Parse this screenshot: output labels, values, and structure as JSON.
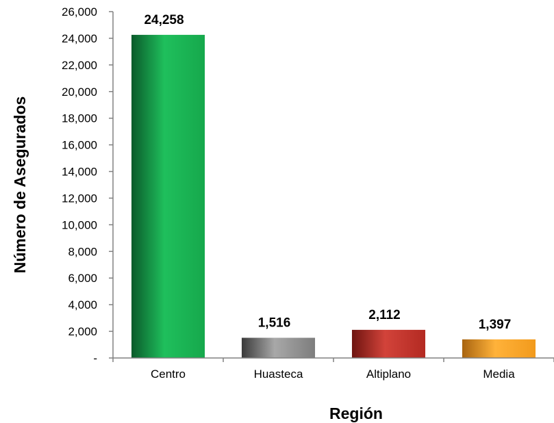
{
  "chart_data": {
    "type": "bar",
    "title": "",
    "xlabel": "Región",
    "ylabel": "Número de Asegurados",
    "categories": [
      "Centro",
      "Huasteca",
      "Altiplano",
      "Media"
    ],
    "values": [
      24258,
      1516,
      2112,
      1397
    ],
    "data_labels": [
      "24,258",
      "1,516",
      "2,112",
      "1,397"
    ],
    "ylim": [
      0,
      26000
    ],
    "y_ticks": [
      0,
      2000,
      4000,
      6000,
      8000,
      10000,
      12000,
      14000,
      16000,
      18000,
      20000,
      22000,
      24000,
      26000
    ],
    "y_tick_labels": [
      "-",
      "2,000",
      "4,000",
      "6,000",
      "8,000",
      "10,000",
      "12,000",
      "14,000",
      "16,000",
      "18,000",
      "20,000",
      "22,000",
      "24,000",
      "26,000"
    ],
    "grid": false,
    "legend": "none",
    "bar_colors": [
      {
        "dark": "#0a5a2a",
        "mid": "#1fbf5c",
        "light": "#16a84c"
      },
      {
        "dark": "#3a3a3a",
        "mid": "#a8a8a8",
        "light": "#7d7d7d"
      },
      {
        "dark": "#6e1410",
        "mid": "#d2433a",
        "light": "#b32a22"
      },
      {
        "dark": "#a86410",
        "mid": "#ffb23a",
        "light": "#f29a1c"
      }
    ]
  }
}
